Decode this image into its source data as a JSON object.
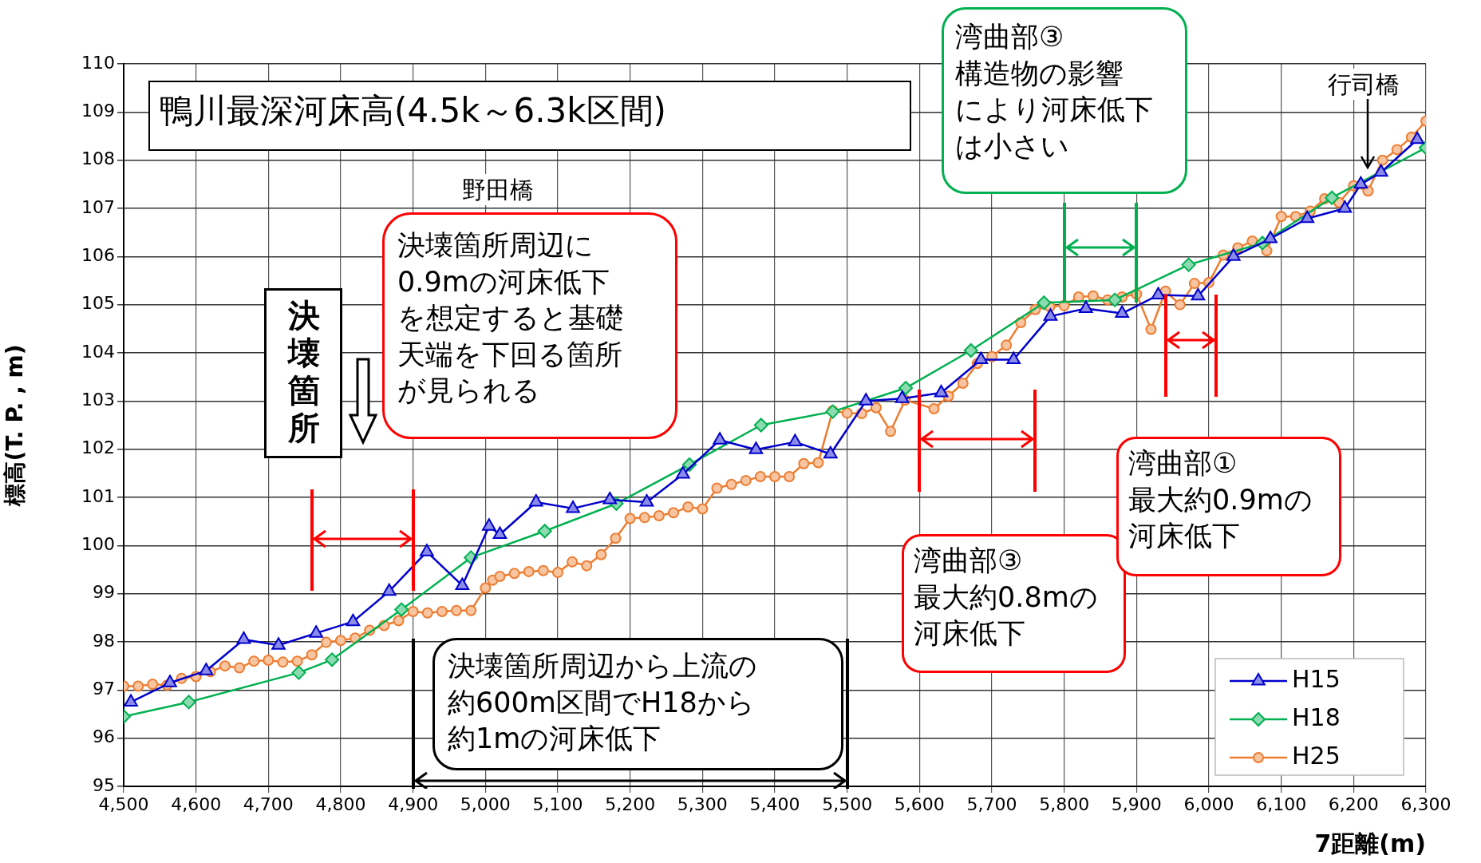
{
  "chart_data": {
    "type": "line",
    "title": "鴨川最深河床高(4.5k～6.3k区間)",
    "xlabel": "7距離(m)",
    "ylabel": "標高(T. P. , m)",
    "xlim": [
      4500,
      6300
    ],
    "ylim": [
      95,
      110
    ],
    "xticks": [
      {
        "value": 4500,
        "label": "4,500"
      },
      {
        "value": 4600,
        "label": "4,600"
      },
      {
        "value": 4700,
        "label": "4,700"
      },
      {
        "value": 4800,
        "label": "4,800"
      },
      {
        "value": 4900,
        "label": "4,900"
      },
      {
        "value": 5000,
        "label": "5,000"
      },
      {
        "value": 5100,
        "label": "5,100"
      },
      {
        "value": 5200,
        "label": "5,200"
      },
      {
        "value": 5300,
        "label": "5,300"
      },
      {
        "value": 5400,
        "label": "5,400"
      },
      {
        "value": 5500,
        "label": "5,500"
      },
      {
        "value": 5600,
        "label": "5,600"
      },
      {
        "value": 5700,
        "label": "5,700"
      },
      {
        "value": 5800,
        "label": "5,800"
      },
      {
        "value": 5900,
        "label": "5,900"
      },
      {
        "value": 6000,
        "label": "6,000"
      },
      {
        "value": 6100,
        "label": "6,100"
      },
      {
        "value": 6200,
        "label": "6,200"
      },
      {
        "value": 6300,
        "label": "6,300"
      }
    ],
    "yticks": [
      95,
      96,
      97,
      98,
      99,
      100,
      101,
      102,
      103,
      104,
      105,
      106,
      107,
      108,
      109,
      110
    ],
    "grid": true,
    "legend": "bottom right",
    "series": [
      {
        "name": "H15",
        "color": "#0000cc",
        "marker": "triangle",
        "x": [
          4510,
          4564,
          4614,
          4666,
          4714,
          4766,
          4817,
          4867,
          4919,
          4968,
          5005,
          5020,
          5070,
          5121,
          5172,
          5223,
          5273,
          5324,
          5374,
          5428,
          5477,
          5526,
          5576,
          5630,
          5685,
          5730,
          5781,
          5830,
          5880,
          5930,
          5985,
          6034,
          6085,
          6136,
          6188,
          6210,
          6238,
          6288
        ],
        "values": [
          96.75,
          97.15,
          97.4,
          98.05,
          97.93,
          98.18,
          98.42,
          99.05,
          99.87,
          99.17,
          100.4,
          100.23,
          100.9,
          100.77,
          100.95,
          100.9,
          101.48,
          102.19,
          101.99,
          102.15,
          101.9,
          103.0,
          103.05,
          103.17,
          103.86,
          103.86,
          104.76,
          104.92,
          104.82,
          105.2,
          105.18,
          106.0,
          106.37,
          106.79,
          107.0,
          107.5,
          107.75,
          108.43
        ]
      },
      {
        "name": "H18",
        "color": "#00b050",
        "marker": "diamond",
        "x": [
          4500,
          4590,
          4742,
          4788,
          4884,
          4980,
          5082,
          5181,
          5282,
          5381,
          5480,
          5581,
          5671,
          5772,
          5870,
          5972,
          6074,
          6170,
          6300
        ],
        "values": [
          96.45,
          96.75,
          97.36,
          97.63,
          98.67,
          99.75,
          100.3,
          100.87,
          101.68,
          102.5,
          102.78,
          103.27,
          104.05,
          105.04,
          105.1,
          105.83,
          106.28,
          107.22,
          108.26
        ]
      },
      {
        "name": "H25",
        "color": "#ed7d31",
        "marker": "circle",
        "x": [
          4500,
          4520,
          4540,
          4560,
          4580,
          4600,
          4620,
          4640,
          4660,
          4680,
          4700,
          4720,
          4740,
          4760,
          4780,
          4800,
          4820,
          4840,
          4860,
          4880,
          4900,
          4920,
          4940,
          4960,
          4980,
          5000,
          5010,
          5020,
          5040,
          5060,
          5080,
          5100,
          5120,
          5140,
          5160,
          5180,
          5200,
          5220,
          5240,
          5260,
          5280,
          5300,
          5320,
          5340,
          5360,
          5380,
          5400,
          5420,
          5440,
          5460,
          5480,
          5500,
          5520,
          5540,
          5560,
          5580,
          5620,
          5640,
          5660,
          5680,
          5700,
          5720,
          5740,
          5760,
          5780,
          5800,
          5820,
          5840,
          5860,
          5880,
          5900,
          5920,
          5940,
          5960,
          5980,
          6000,
          6020,
          6040,
          6060,
          6080,
          6100,
          6120,
          6140,
          6160,
          6180,
          6200,
          6220,
          6240,
          6260,
          6280,
          6300
        ],
        "values": [
          97.08,
          97.08,
          97.12,
          97.1,
          97.24,
          97.28,
          97.38,
          97.5,
          97.46,
          97.6,
          97.62,
          97.58,
          97.6,
          97.73,
          97.99,
          98.03,
          98.08,
          98.24,
          98.34,
          98.44,
          98.63,
          98.6,
          98.63,
          98.65,
          98.65,
          99.12,
          99.28,
          99.36,
          99.42,
          99.46,
          99.48,
          99.44,
          99.66,
          99.58,
          99.81,
          100.15,
          100.56,
          100.58,
          100.62,
          100.68,
          100.8,
          100.76,
          101.19,
          101.27,
          101.35,
          101.43,
          101.43,
          101.43,
          101.7,
          101.72,
          102.8,
          102.75,
          102.74,
          102.86,
          102.37,
          103.02,
          102.84,
          103.1,
          103.37,
          103.78,
          103.92,
          104.16,
          104.63,
          104.9,
          104.96,
          104.98,
          105.16,
          105.18,
          105.1,
          105.16,
          105.22,
          104.49,
          105.28,
          105.0,
          105.44,
          105.46,
          106.03,
          106.18,
          106.32,
          106.12,
          106.83,
          106.83,
          106.94,
          107.2,
          107.12,
          107.47,
          107.36,
          108.0,
          108.22,
          108.48,
          108.81
        ]
      }
    ],
    "annotations": [
      "野田橋",
      "行司橋",
      "決壊箇所",
      "決壊箇所周辺に0.9mの河床低下を想定すると基礎天端を下回る箇所が見られる",
      "決壊箇所周辺から上流の約600m区間でH18から約1mの河床低下",
      "湾曲部③最大約0.8mの河床低下",
      "湾曲部①最大約0.9mの河床低下",
      "湾曲部③構造物の影響により河床低下は小さい"
    ]
  }
}
